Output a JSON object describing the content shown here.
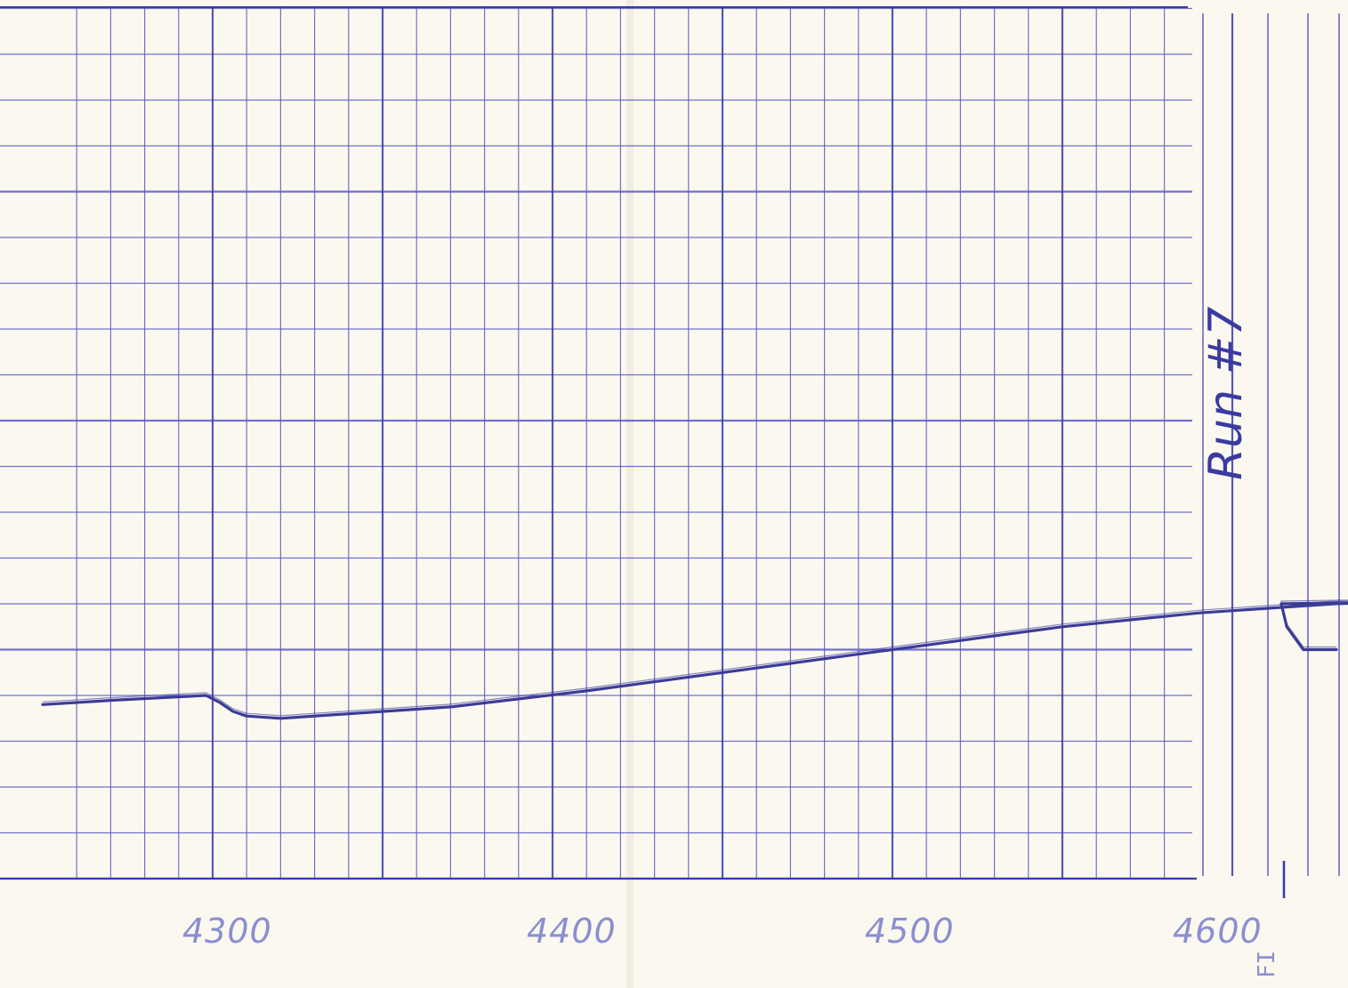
{
  "chart_data": {
    "type": "line",
    "title": "",
    "xlabel": "",
    "ylabel": "",
    "annotation": "Run #7",
    "end_mark": "FI",
    "x_ticks": [
      {
        "value": 4300,
        "label": "4300"
      },
      {
        "value": 4400,
        "label": "4400"
      },
      {
        "value": 4500,
        "label": "4500"
      },
      {
        "value": 4600,
        "label": "4600"
      }
    ],
    "xlim": [
      4200,
      4620
    ],
    "ylim": [
      0,
      19
    ],
    "grid": true,
    "series": [
      {
        "x": [
          4200,
          4222,
          4248,
          4252,
          4256,
          4260,
          4270,
          4290,
          4320,
          4360,
          4400,
          4420,
          4440,
          4460,
          4480,
          4500,
          4520,
          4540,
          4560,
          4580,
          4600,
          4605,
          4608,
          4609,
          4612,
          4614,
          4618
        ],
        "y": [
          3.8,
          3.9,
          4.0,
          3.85,
          3.65,
          3.55,
          3.5,
          3.6,
          3.75,
          4.1,
          4.5,
          4.7,
          4.9,
          5.1,
          5.3,
          5.5,
          5.65,
          5.8,
          5.9,
          6.0,
          6.05,
          6.05,
          6.0,
          5.5,
          5.0,
          5.0,
          5.0
        ]
      }
    ],
    "colors": {
      "paper": "#fbf8ef",
      "grid_major": "#3a3ab0",
      "grid_minor": "#5a5ac8",
      "trace": "#3b3b98",
      "tick_label": "#8a8fd0"
    }
  }
}
